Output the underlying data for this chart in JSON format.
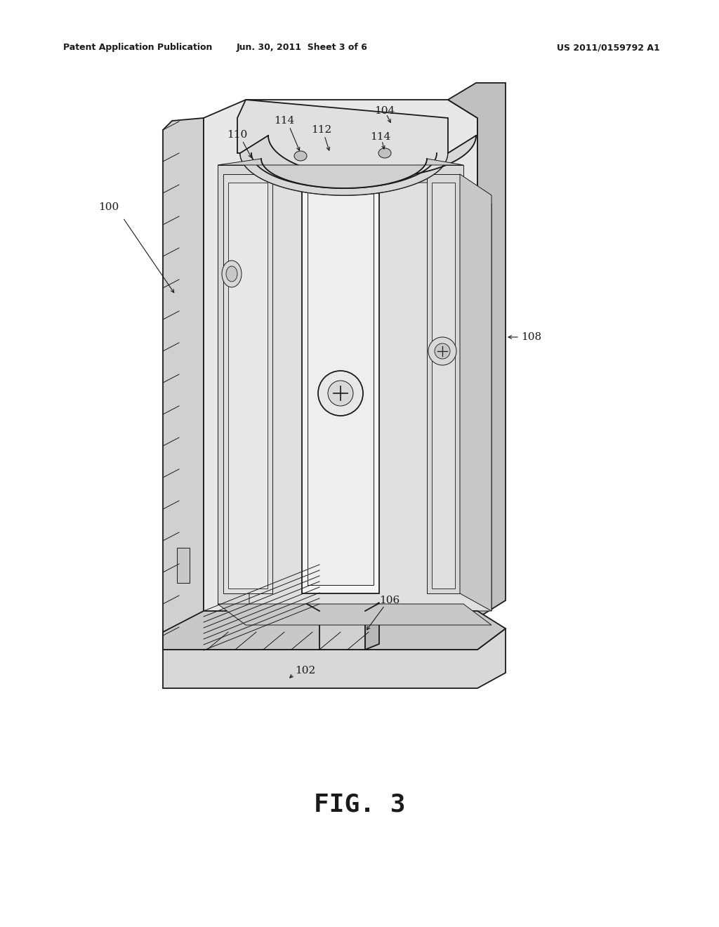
{
  "bg_color": "#ffffff",
  "header_left": "Patent Application Publication",
  "header_mid": "Jun. 30, 2011  Sheet 3 of 6",
  "header_right": "US 2011/0159792 A1",
  "fig_label": "FIG. 3",
  "line_color": "#1a1a1a",
  "lw": 1.3,
  "lw_thin": 0.7
}
